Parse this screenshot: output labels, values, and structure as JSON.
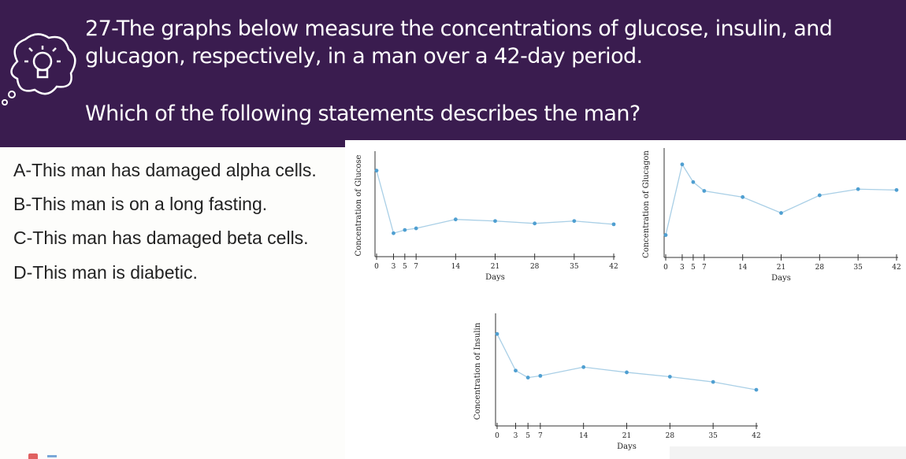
{
  "question": {
    "line1": "27-The graphs below measure the concentrations of glucose, insulin, and",
    "line2": "glucagon, respectively, in a man over a 42-day period.",
    "prompt": "Which of the following statements describes the man?"
  },
  "options": [
    "A-This man has damaged alpha cells.",
    "B-This man is on a long fasting.",
    "C-This man has damaged beta cells.",
    "D-This man is diabetic."
  ],
  "colors": {
    "header_bg": "#3a1c4f",
    "line": "#a9cfe6",
    "point": "#4f9fd1"
  },
  "chart_data": [
    {
      "type": "line",
      "ylabel": "Concentration of Glucose",
      "xlabel": "Days",
      "x_ticks": [
        0,
        3,
        5,
        7,
        14,
        21,
        28,
        35,
        42
      ],
      "x_tick_labels": [
        "0",
        "3",
        "5",
        "7",
        "14",
        "21",
        "28",
        "35",
        "42"
      ],
      "x": [
        0,
        3,
        5,
        7,
        14,
        21,
        28,
        35,
        42
      ],
      "values": [
        100,
        23,
        27,
        29,
        40,
        38,
        35,
        38,
        34
      ],
      "ylim": [
        0,
        120
      ]
    },
    {
      "type": "line",
      "ylabel": "Concentration of Glucagon",
      "xlabel": "Days",
      "x_ticks": [
        0,
        3,
        5,
        7,
        14,
        21,
        28,
        35,
        42
      ],
      "x_tick_labels": [
        "0",
        "3",
        "5",
        "7",
        "14",
        "21",
        "28",
        "35",
        "42"
      ],
      "x": [
        0,
        3,
        5,
        7,
        14,
        21,
        28,
        35,
        42
      ],
      "values": [
        20,
        100,
        80,
        70,
        63,
        45,
        65,
        72,
        71
      ],
      "ylim": [
        0,
        115
      ]
    },
    {
      "type": "line",
      "ylabel": "Concentration of Insulin",
      "xlabel": "Days",
      "x_ticks": [
        0,
        3,
        5,
        7,
        14,
        21,
        28,
        35,
        42
      ],
      "x_tick_labels": [
        "0",
        "3",
        "5",
        "7",
        "14",
        "21",
        "28",
        "35",
        "42"
      ],
      "x": [
        0,
        3,
        5,
        7,
        14,
        21,
        28,
        35,
        42
      ],
      "values": [
        100,
        58,
        50,
        52,
        62,
        56,
        51,
        45,
        36
      ],
      "ylim": [
        0,
        120
      ]
    }
  ]
}
